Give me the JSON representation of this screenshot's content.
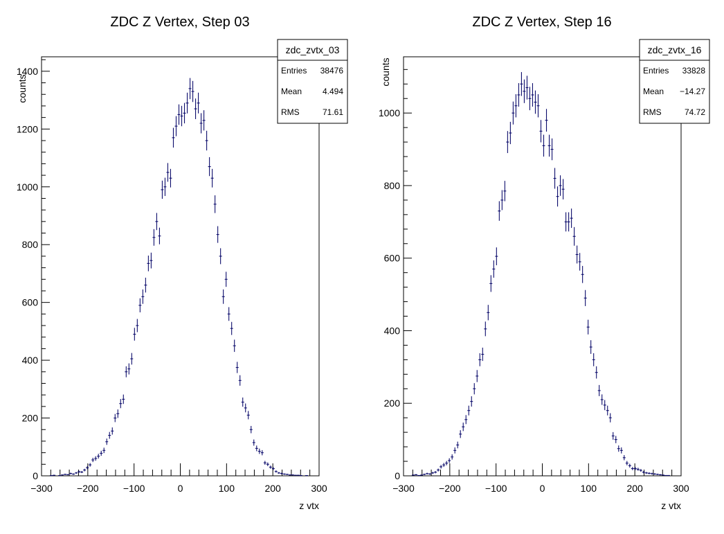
{
  "chart_data": [
    {
      "type": "scatter",
      "title": "ZDC Z Vertex, Step 03",
      "xlabel": "z vtx",
      "ylabel": "counts",
      "xlim": [
        -300,
        300
      ],
      "ylim": [
        0,
        1450
      ],
      "xticks": [
        -300,
        -200,
        -100,
        0,
        100,
        200,
        300
      ],
      "yticks": [
        0,
        200,
        400,
        600,
        800,
        1000,
        1200,
        1400
      ],
      "grid": false,
      "legend_position": "top-right",
      "stats": {
        "name": "zdc_zvtx_03",
        "rows": [
          {
            "label": "Entries",
            "value": "38476"
          },
          {
            "label": "Mean",
            "value": "4.494"
          },
          {
            "label": "RMS",
            "value": "71.61"
          }
        ]
      },
      "bin_width": 6,
      "x": [
        -279,
        -273,
        -267,
        -261,
        -255,
        -249,
        -243,
        -237,
        -231,
        -225,
        -219,
        -213,
        -207,
        -201,
        -195,
        -189,
        -183,
        -177,
        -171,
        -165,
        -159,
        -153,
        -147,
        -141,
        -135,
        -129,
        -123,
        -117,
        -111,
        -105,
        -99,
        -93,
        -87,
        -81,
        -75,
        -69,
        -63,
        -57,
        -51,
        -45,
        -39,
        -33,
        -27,
        -21,
        -15,
        -9,
        -3,
        3,
        9,
        15,
        21,
        27,
        33,
        39,
        45,
        51,
        57,
        63,
        69,
        75,
        81,
        87,
        93,
        99,
        105,
        111,
        117,
        123,
        129,
        135,
        141,
        147,
        153,
        159,
        165,
        171,
        177,
        183,
        189,
        195,
        201,
        207,
        213,
        219,
        225,
        231,
        237,
        243,
        249,
        255,
        261,
        267,
        273,
        279
      ],
      "values": [
        1,
        2,
        0,
        1,
        3,
        5,
        4,
        8,
        6,
        10,
        14,
        13,
        20,
        28,
        38,
        55,
        60,
        68,
        78,
        88,
        118,
        140,
        155,
        200,
        215,
        250,
        265,
        360,
        370,
        405,
        490,
        520,
        590,
        620,
        660,
        735,
        745,
        825,
        880,
        830,
        990,
        1000,
        1050,
        1030,
        1170,
        1210,
        1250,
        1245,
        1255,
        1290,
        1340,
        1330,
        1270,
        1290,
        1220,
        1230,
        1160,
        1070,
        1030,
        940,
        835,
        760,
        620,
        680,
        560,
        510,
        450,
        375,
        330,
        255,
        235,
        210,
        160,
        115,
        95,
        85,
        80,
        45,
        40,
        30,
        25,
        15,
        10,
        8,
        6,
        5,
        3,
        3,
        2,
        2,
        1,
        0,
        1,
        0
      ]
    },
    {
      "type": "scatter",
      "title": "ZDC Z Vertex, Step 16",
      "xlabel": "z vtx",
      "ylabel": "counts",
      "xlim": [
        -300,
        300
      ],
      "ylim": [
        0,
        1155
      ],
      "xticks": [
        -300,
        -200,
        -100,
        0,
        100,
        200,
        300
      ],
      "yticks": [
        0,
        200,
        400,
        600,
        800,
        1000
      ],
      "grid": false,
      "legend_position": "top-right",
      "stats": {
        "name": "zdc_zvtx_16",
        "rows": [
          {
            "label": "Entries",
            "value": "33828"
          },
          {
            "label": "Mean",
            "value": "−14.27"
          },
          {
            "label": "RMS",
            "value": "74.72"
          }
        ]
      },
      "bin_width": 6,
      "x": [
        -279,
        -273,
        -267,
        -261,
        -255,
        -249,
        -243,
        -237,
        -231,
        -225,
        -219,
        -213,
        -207,
        -201,
        -195,
        -189,
        -183,
        -177,
        -171,
        -165,
        -159,
        -153,
        -147,
        -141,
        -135,
        -129,
        -123,
        -117,
        -111,
        -105,
        -99,
        -93,
        -87,
        -81,
        -75,
        -69,
        -63,
        -57,
        -51,
        -45,
        -39,
        -33,
        -27,
        -21,
        -15,
        -9,
        -3,
        3,
        9,
        15,
        21,
        27,
        33,
        39,
        45,
        51,
        57,
        63,
        69,
        75,
        81,
        87,
        93,
        99,
        105,
        111,
        117,
        123,
        129,
        135,
        141,
        147,
        153,
        159,
        165,
        171,
        177,
        183,
        189,
        195,
        201,
        207,
        213,
        219,
        225,
        231,
        237,
        243,
        249,
        255,
        261,
        267,
        273,
        279
      ],
      "values": [
        2,
        3,
        1,
        2,
        4,
        6,
        5,
        8,
        10,
        16,
        25,
        30,
        35,
        42,
        52,
        70,
        85,
        115,
        135,
        155,
        180,
        205,
        240,
        275,
        320,
        335,
        405,
        450,
        530,
        570,
        605,
        730,
        760,
        785,
        920,
        945,
        1000,
        1020,
        1050,
        1080,
        1060,
        1070,
        1040,
        1050,
        1030,
        1020,
        950,
        910,
        980,
        910,
        900,
        820,
        770,
        800,
        790,
        700,
        700,
        710,
        660,
        610,
        590,
        555,
        490,
        410,
        355,
        320,
        285,
        235,
        210,
        195,
        180,
        160,
        110,
        100,
        75,
        70,
        50,
        35,
        28,
        20,
        20,
        18,
        15,
        10,
        8,
        7,
        6,
        5,
        4,
        3,
        2,
        1,
        1,
        0
      ]
    }
  ]
}
